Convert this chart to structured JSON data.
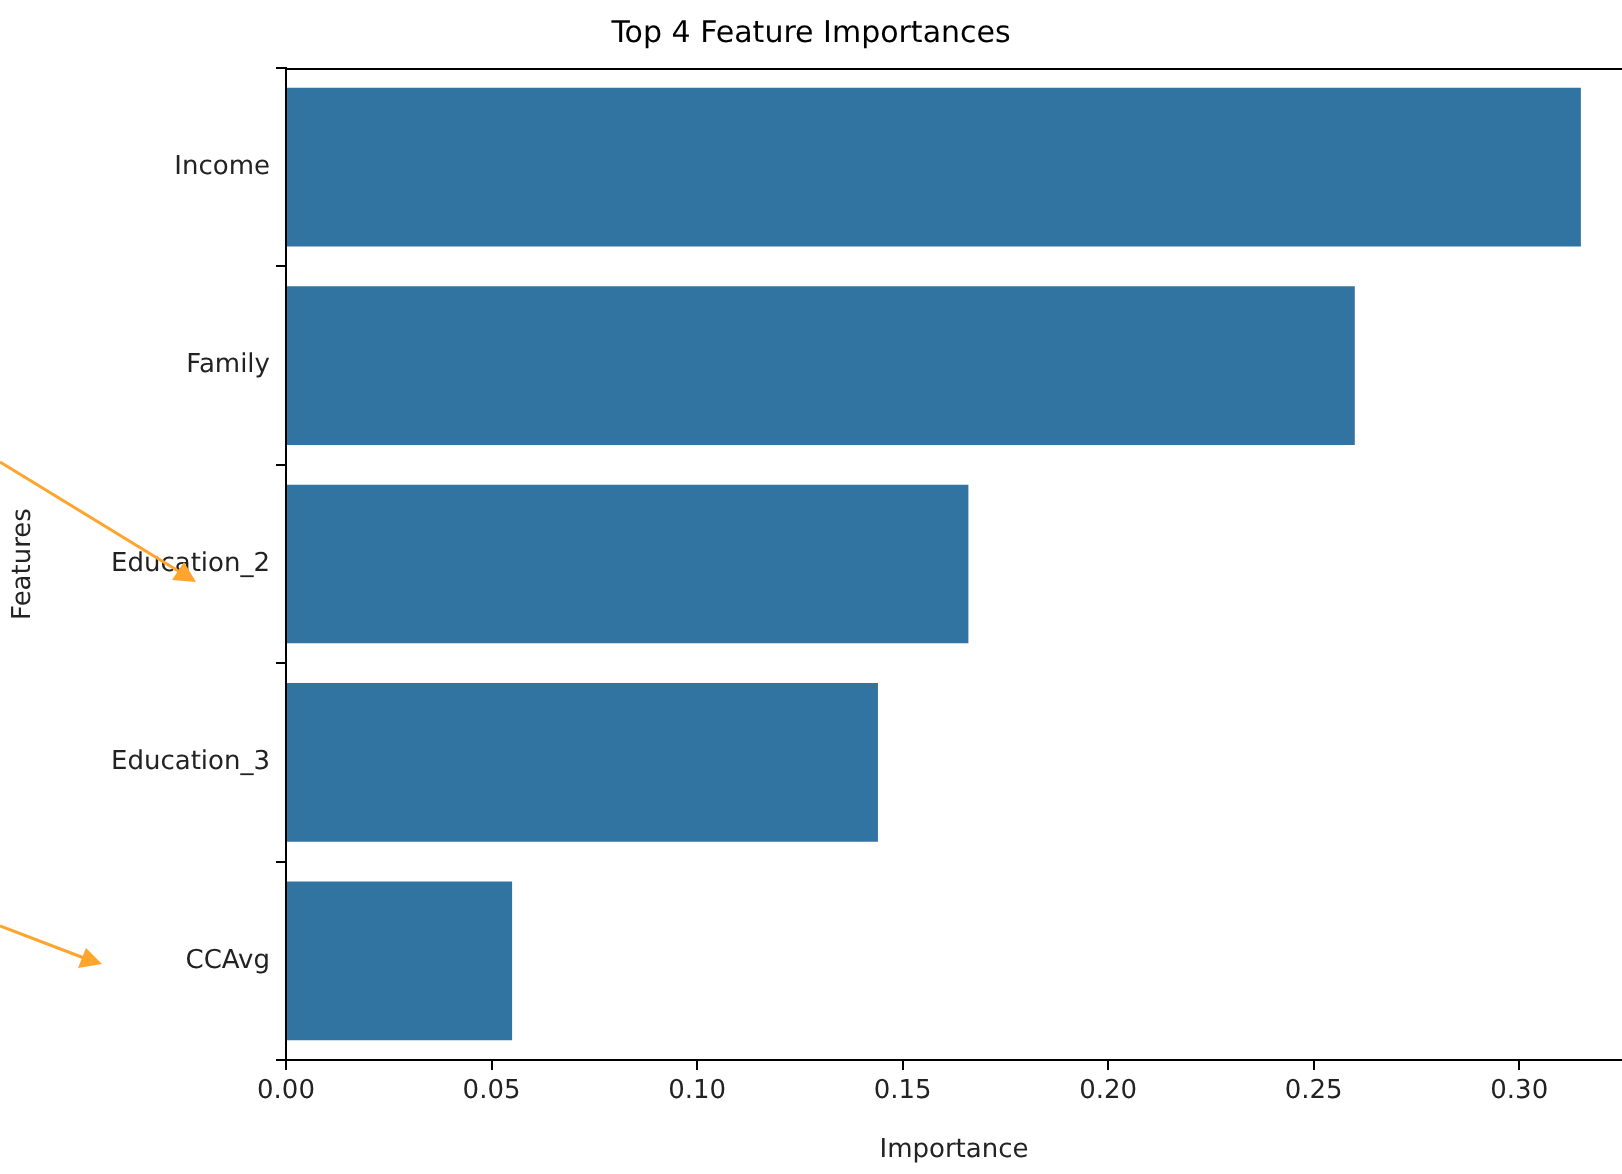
{
  "chart_data": {
    "type": "bar",
    "orientation": "horizontal",
    "title": "Top 4 Feature Importances",
    "xlabel": "Importance",
    "ylabel": "Features",
    "categories": [
      "Income",
      "Family",
      "Education_2",
      "Education_3",
      "CCAvg"
    ],
    "values": [
      0.315,
      0.26,
      0.166,
      0.144,
      0.055
    ],
    "color": "#3274a1",
    "xlim": [
      0,
      0.325
    ],
    "xticks": [
      {
        "value": 0,
        "label": "0.00"
      },
      {
        "value": 0.05,
        "label": "0.05"
      },
      {
        "value": 0.1,
        "label": "0.10"
      },
      {
        "value": 0.15,
        "label": "0.15"
      },
      {
        "value": 0.2,
        "label": "0.20"
      },
      {
        "value": 0.25,
        "label": "0.25"
      },
      {
        "value": 0.3,
        "label": "0.30"
      }
    ],
    "grid": false,
    "legend": false
  }
}
